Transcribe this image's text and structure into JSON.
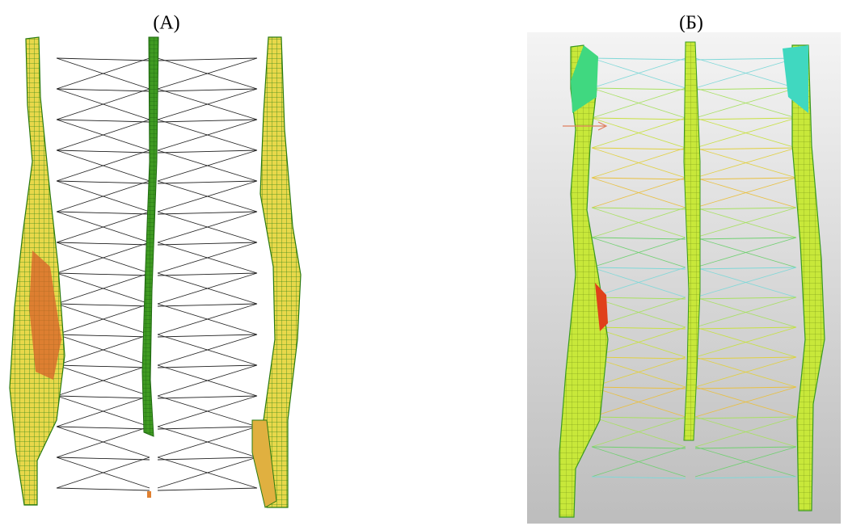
{
  "panels": [
    {
      "label": "(А)"
    },
    {
      "label": "(Б)"
    }
  ]
}
